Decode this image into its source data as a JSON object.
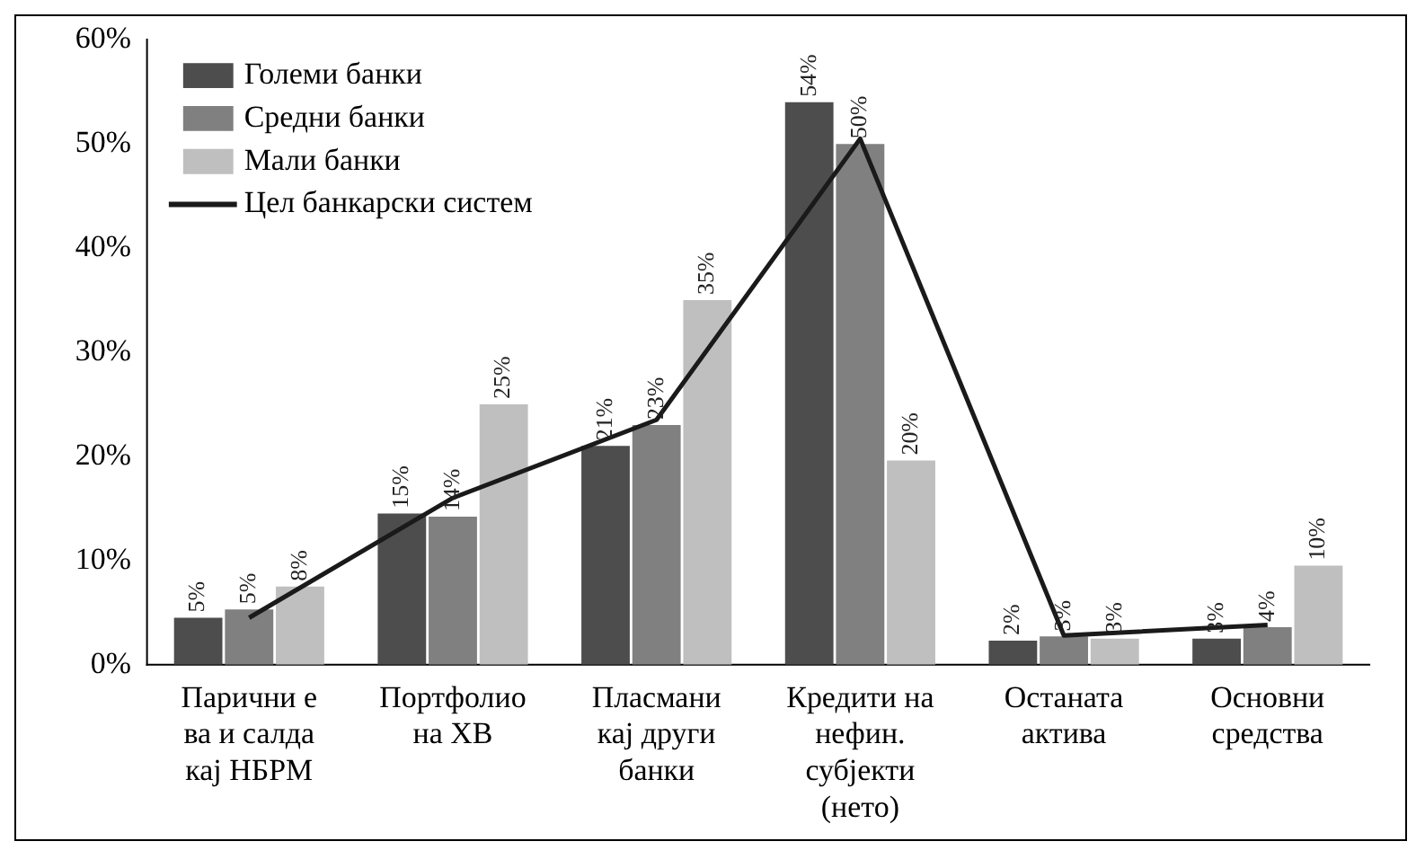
{
  "chart_data": {
    "type": "bar",
    "categories": [
      "Парични е\nва и салда\nкај НБРМ",
      "Портфолио\nна ХВ",
      "Пласмани\nкај други\nбанки",
      "Кредити на\nнефин.\nсубјекти\n(нето)",
      "Останата\nактива",
      "Основни\nсредства"
    ],
    "series": [
      {
        "name": "Големи банки",
        "color": "#4d4d4d",
        "values": [
          4.5,
          14.5,
          21,
          54,
          2.3,
          2.5
        ],
        "value_labels": [
          "5%",
          "15%",
          "21%",
          "54%",
          "2%",
          "3%"
        ]
      },
      {
        "name": "Средни банки",
        "color": "#808080",
        "values": [
          5.3,
          14.2,
          23,
          50,
          2.7,
          3.6
        ],
        "value_labels": [
          "5%",
          "14%",
          "23%",
          "50%",
          "3%",
          "4%"
        ]
      },
      {
        "name": "Мали банки",
        "color": "#bfbfbf",
        "values": [
          7.5,
          25,
          35,
          19.6,
          2.5,
          9.5
        ],
        "value_labels": [
          "8%",
          "25%",
          "35%",
          "20%",
          "3%",
          "10%"
        ]
      },
      {
        "name": "Цел банкарски систем",
        "type": "line",
        "color": "#1a1a1a",
        "values": [
          4.5,
          16,
          23.5,
          50.5,
          2.8,
          3.8
        ]
      }
    ],
    "ylim": [
      0,
      60
    ],
    "yticks": [
      {
        "value": 0,
        "label": "0%"
      },
      {
        "value": 10,
        "label": "10%"
      },
      {
        "value": 20,
        "label": "20%"
      },
      {
        "value": 30,
        "label": "30%"
      },
      {
        "value": 40,
        "label": "40%"
      },
      {
        "value": 50,
        "label": "50%"
      },
      {
        "value": 60,
        "label": "60%"
      }
    ],
    "grid": false,
    "legend": "top left",
    "marker": "none"
  }
}
